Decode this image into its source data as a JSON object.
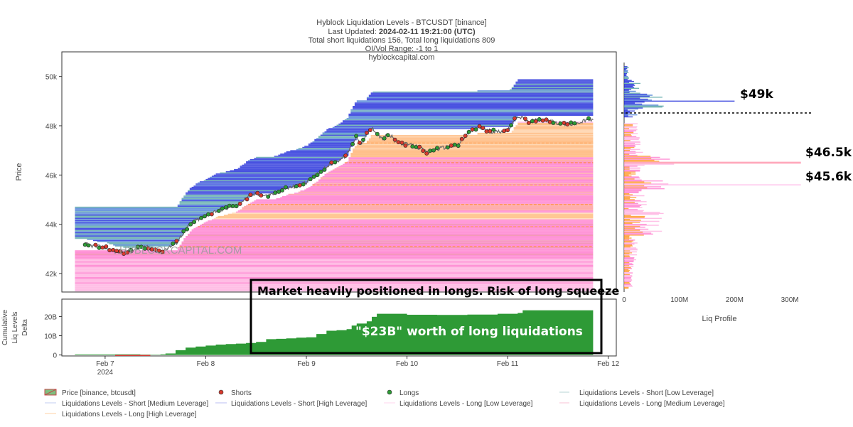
{
  "chart_data": {
    "type": "line",
    "title_lines": [
      "Hyblock Liquidation Levels - BTCUSDT [binance]",
      "Last Updated:",
      "2024-02-11 19:21:00 (UTC)",
      "Total short liquidations 156, Total long liquidations 809",
      "OI/Vol Range: -1 to 1",
      "hyblockcapital.com"
    ],
    "watermark": "HYBLOCKCAPITAL.COM",
    "price_axis": {
      "label": "Price",
      "ticks": [
        42000,
        44000,
        46000,
        48000,
        50000
      ],
      "tick_labels": [
        "42k",
        "44k",
        "46k",
        "48k",
        "50k"
      ],
      "ylim": [
        41250,
        51000
      ]
    },
    "delta_axis": {
      "label_lines": [
        "Cumulative",
        "Liq Levels",
        "Delta"
      ],
      "ticks": [
        0,
        10,
        20
      ],
      "tick_labels": [
        "0",
        "10B",
        "20B"
      ],
      "ylim": [
        -0.5,
        29
      ]
    },
    "time_axis": {
      "tick_labels": [
        "Feb 7\n2024",
        "Feb 8",
        "Feb 9",
        "Feb 10",
        "Feb 11",
        "Feb 12"
      ],
      "tick_days": [
        0,
        1,
        2,
        3,
        4,
        5
      ],
      "xlim_days": [
        -0.43,
        5.08
      ]
    },
    "price_series": {
      "name": "Price [binance, btcusdt]",
      "x_days": [
        -0.2,
        -0.1,
        0.0,
        0.1,
        0.2,
        0.3,
        0.35,
        0.45,
        0.55,
        0.6,
        0.7,
        0.8,
        0.85,
        0.9,
        1.0,
        1.1,
        1.2,
        1.3,
        1.4,
        1.5,
        1.6,
        1.7,
        1.8,
        1.9,
        2.0,
        2.1,
        2.2,
        2.3,
        2.4,
        2.45,
        2.5,
        2.55,
        2.6,
        2.65,
        2.7,
        2.75,
        2.8,
        2.85,
        2.9,
        3.0,
        3.1,
        3.2,
        3.3,
        3.4,
        3.5,
        3.6,
        3.7,
        3.8,
        3.9,
        4.0,
        4.1,
        4.15,
        4.2,
        4.3,
        4.4,
        4.5,
        4.6,
        4.7,
        4.8,
        4.85
      ],
      "values": [
        43200,
        43100,
        43050,
        42900,
        42850,
        42950,
        43100,
        43050,
        42850,
        43000,
        43200,
        43800,
        44000,
        44150,
        44350,
        44550,
        44650,
        44750,
        45050,
        45250,
        45150,
        45300,
        45450,
        45550,
        45700,
        46000,
        46350,
        46550,
        46800,
        47250,
        47550,
        47250,
        47650,
        47900,
        47750,
        47450,
        47600,
        47550,
        47300,
        47250,
        47150,
        46900,
        47050,
        47150,
        47200,
        47650,
        47950,
        47800,
        47750,
        47850,
        48400,
        48300,
        48150,
        48250,
        48200,
        48100,
        48050,
        48100,
        48250,
        48200
      ]
    },
    "cumulative_delta": {
      "name": "Cumulative Liq Levels Delta",
      "x_days": [
        -0.3,
        0.3,
        0.35,
        0.45,
        0.55,
        0.6,
        0.7,
        0.8,
        0.9,
        1.0,
        1.1,
        1.2,
        1.3,
        1.4,
        1.5,
        1.6,
        1.7,
        1.8,
        1.9,
        2.0,
        2.1,
        2.2,
        2.3,
        2.4,
        2.45,
        2.5,
        2.6,
        2.65,
        2.7,
        3.0,
        3.3,
        3.6,
        3.9,
        4.1,
        4.15,
        4.85
      ],
      "values": [
        0.3,
        0.3,
        0.2,
        0.2,
        0.4,
        0.8,
        2.5,
        3.8,
        4.4,
        4.9,
        5.4,
        5.7,
        5.9,
        6.2,
        6.8,
        8.2,
        8.4,
        8.6,
        9.0,
        9.2,
        10.9,
        12.6,
        12.9,
        13.4,
        15.3,
        16.3,
        17.5,
        19.8,
        21.4,
        20.9,
        20.8,
        21.0,
        21.4,
        21.8,
        23.2,
        23.0
      ]
    },
    "liq_profile": {
      "xlabel": "Liq Profile",
      "tick_labels": [
        "0",
        "100M",
        "200M",
        "300M"
      ],
      "ticks": [
        0,
        100,
        200,
        300
      ],
      "xlim": [
        0,
        350
      ],
      "unit": "M"
    },
    "annotations": {
      "box_text": "Market heavily positioned in longs. Risk of long squeeze",
      "box_subtext": "\"$23B\" worth of long liquidations",
      "level_labels": [
        "$49k",
        "$46.5k",
        "$45.6k"
      ],
      "level_prices": [
        49000,
        46500,
        45600
      ],
      "current_price_line": 48300
    },
    "legend": [
      {
        "label": "Price [binance, btcusdt]",
        "symbol": "price"
      },
      {
        "label": "Shorts",
        "symbol": "short-dot"
      },
      {
        "label": "Longs",
        "symbol": "long-dot"
      },
      {
        "label": "Liquidations Levels - Short [Low Leverage]",
        "symbol": "line-faint"
      },
      {
        "label": "Liquidations Levels - Short [Medium Leverage]",
        "symbol": "line-faint"
      },
      {
        "label": "Liquidations Levels - Short [High Leverage]",
        "symbol": "line-faint"
      },
      {
        "label": "Liquidations Levels - Long [Low Leverage]",
        "symbol": "line-faint"
      },
      {
        "label": "Liquidations Levels - Long [Medium Leverage]",
        "symbol": "line-faint"
      },
      {
        "label": "Liquidations Levels - Long [High Leverage]",
        "symbol": "line-faint"
      }
    ],
    "colors": {
      "short_high": "#1f2bd9",
      "short_mid": "#4a7fd6",
      "short_low": "#5aa7a7",
      "long_high": "#ff9a2e",
      "long_mid": "#f08aa8",
      "long_low": "#ffb3e0",
      "long_pink": "#ff7fcf",
      "delta_positive": "#2e9a36",
      "delta_negative": "#d93a3a",
      "short_dot": "#d83a2e",
      "long_dot": "#2e9a36",
      "price_line": "#6a6a6a"
    }
  }
}
